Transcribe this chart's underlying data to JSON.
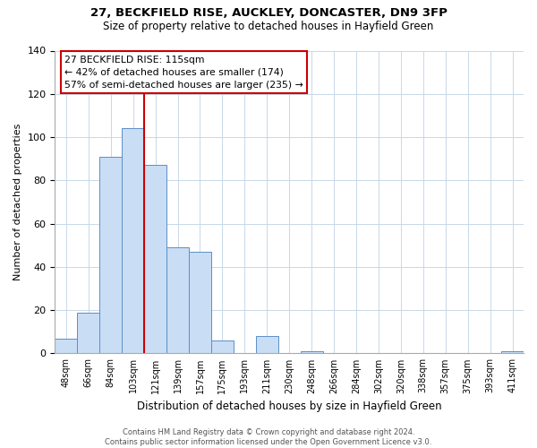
{
  "title": "27, BECKFIELD RISE, AUCKLEY, DONCASTER, DN9 3FP",
  "subtitle": "Size of property relative to detached houses in Hayfield Green",
  "xlabel": "Distribution of detached houses by size in Hayfield Green",
  "ylabel": "Number of detached properties",
  "bin_labels": [
    "48sqm",
    "66sqm",
    "84sqm",
    "103sqm",
    "121sqm",
    "139sqm",
    "157sqm",
    "175sqm",
    "193sqm",
    "211sqm",
    "230sqm",
    "248sqm",
    "266sqm",
    "284sqm",
    "302sqm",
    "320sqm",
    "338sqm",
    "357sqm",
    "375sqm",
    "393sqm",
    "411sqm"
  ],
  "bar_heights": [
    7,
    19,
    91,
    104,
    87,
    49,
    47,
    6,
    0,
    8,
    0,
    1,
    0,
    0,
    0,
    0,
    0,
    0,
    0,
    0,
    1
  ],
  "bar_color": "#c9ddf5",
  "bar_edge_color": "#5b8fc9",
  "vline_color": "#cc0000",
  "vline_x_idx": 4,
  "annotation_title": "27 BECKFIELD RISE: 115sqm",
  "annotation_line1": "← 42% of detached houses are smaller (174)",
  "annotation_line2": "57% of semi-detached houses are larger (235) →",
  "annotation_box_facecolor": "#ffffff",
  "annotation_box_edgecolor": "#cc0000",
  "ylim": [
    0,
    140
  ],
  "yticks": [
    0,
    20,
    40,
    60,
    80,
    100,
    120,
    140
  ],
  "grid_color": "#c8d8e8",
  "footer_line1": "Contains HM Land Registry data © Crown copyright and database right 2024.",
  "footer_line2": "Contains public sector information licensed under the Open Government Licence v3.0."
}
